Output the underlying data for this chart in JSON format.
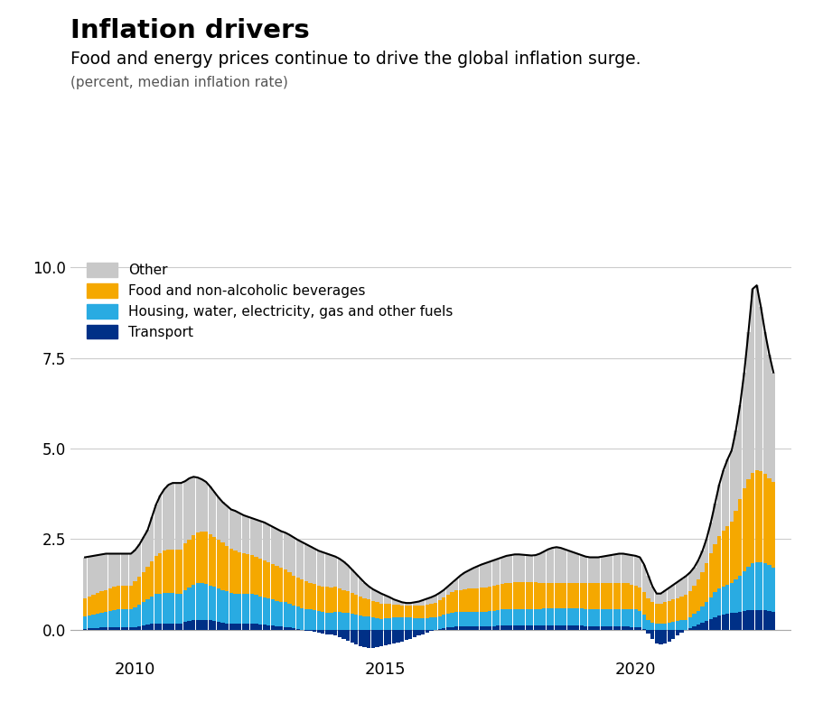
{
  "title": "Inflation drivers",
  "subtitle": "Food and energy prices continue to drive the global inflation surge.",
  "subtitle2": "(percent, median inflation rate)",
  "legend_labels": [
    "Other",
    "Food and non-alcoholic beverages",
    "Housing, water, electricity, gas and other fuels",
    "Transport"
  ],
  "colors": {
    "other": "#c8c8c8",
    "food": "#f5a800",
    "housing": "#29abe2",
    "transport": "#003087"
  },
  "line_color": "#000000",
  "ylim": [
    -0.75,
    10.5
  ],
  "yticks": [
    0.0,
    2.5,
    5.0,
    7.5,
    10.0
  ],
  "background": "#ffffff"
}
